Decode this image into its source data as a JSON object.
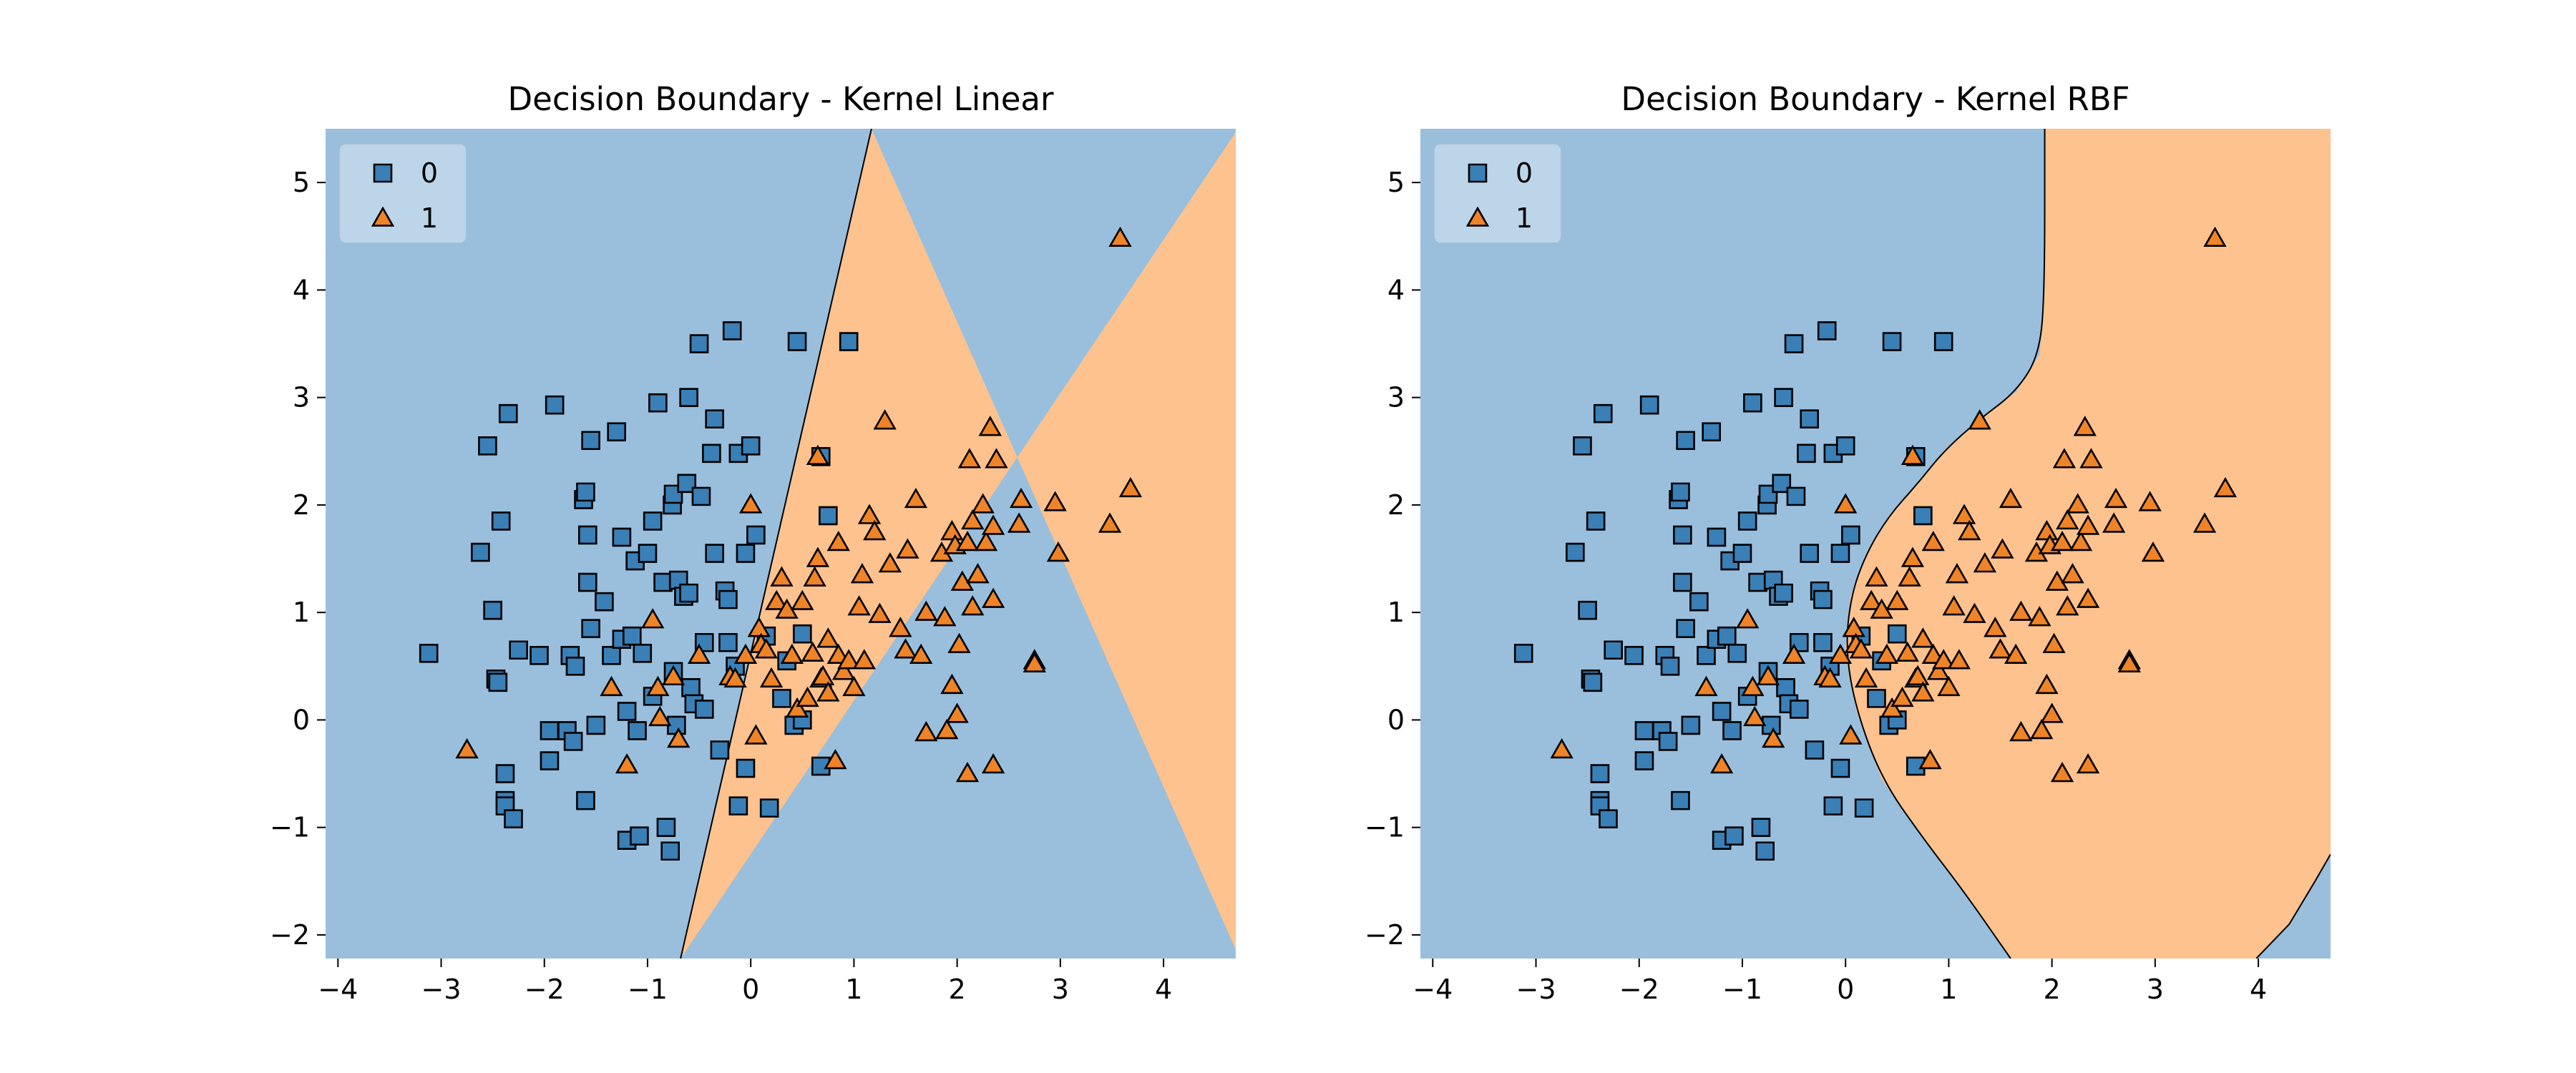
{
  "colors": {
    "class0_region": "#99bfdd",
    "class1_region": "#fec28f",
    "class0_marker": "#3a7fb5",
    "class1_marker": "#ee8327",
    "boundary": "#000000"
  },
  "chart_data": [
    {
      "type": "scatter",
      "title": "Decision Boundary - Kernel Linear",
      "xlim": [
        -4.12,
        4.7
      ],
      "ylim": [
        -2.22,
        5.5
      ],
      "x_ticks": [
        -4,
        -3,
        -2,
        -1,
        0,
        1,
        2,
        3,
        4
      ],
      "x_tick_labels": [
        "−4",
        "−3",
        "−2",
        "−1",
        "0",
        "1",
        "2",
        "3",
        "4"
      ],
      "y_ticks": [
        -2,
        -1,
        0,
        1,
        2,
        3,
        4,
        5
      ],
      "y_tick_labels": [
        "−2",
        "−1",
        "0",
        "1",
        "2",
        "3",
        "4",
        "5"
      ],
      "legend": {
        "position": "top-left",
        "entries": [
          {
            "label": "0",
            "marker": "square"
          },
          {
            "label": "1",
            "marker": "triangle"
          }
        ]
      },
      "boundary_kind": "linear",
      "boundary_points": [
        [
          -0.68,
          -2.22
        ],
        [
          1.17,
          5.5
        ]
      ],
      "regions": [
        {
          "class": "0",
          "side": "left"
        },
        {
          "class": "1",
          "side": "right"
        }
      ]
    },
    {
      "type": "scatter",
      "title": "Decision Boundary - Kernel RBF",
      "xlim": [
        -4.12,
        4.7
      ],
      "ylim": [
        -2.22,
        5.5
      ],
      "x_ticks": [
        -4,
        -3,
        -2,
        -1,
        0,
        1,
        2,
        3,
        4
      ],
      "x_tick_labels": [
        "−4",
        "−3",
        "−2",
        "−1",
        "0",
        "1",
        "2",
        "3",
        "4"
      ],
      "y_ticks": [
        -2,
        -1,
        0,
        1,
        2,
        3,
        4,
        5
      ],
      "y_tick_labels": [
        "−2",
        "−1",
        "0",
        "1",
        "2",
        "3",
        "4",
        "5"
      ],
      "legend": {
        "position": "top-left",
        "entries": [
          {
            "label": "0",
            "marker": "square"
          },
          {
            "label": "1",
            "marker": "triangle"
          }
        ]
      },
      "boundary_kind": "rbf",
      "boundary_points": [
        [
          1.93,
          5.5
        ],
        [
          1.93,
          4.0
        ],
        [
          1.88,
          3.4
        ],
        [
          1.65,
          3.05
        ],
        [
          1.3,
          2.8
        ],
        [
          0.95,
          2.5
        ],
        [
          0.7,
          2.2
        ],
        [
          0.42,
          1.9
        ],
        [
          0.2,
          1.55
        ],
        [
          0.05,
          1.15
        ],
        [
          0.0,
          0.65
        ],
        [
          0.1,
          0.1
        ],
        [
          0.35,
          -0.55
        ],
        [
          0.75,
          -1.1
        ],
        [
          1.15,
          -1.6
        ],
        [
          1.6,
          -2.22
        ]
      ],
      "corner_boundary_points": [
        [
          3.98,
          -2.22
        ],
        [
          4.3,
          -1.9
        ],
        [
          4.55,
          -1.5
        ],
        [
          4.7,
          -1.25
        ]
      ],
      "regions": [
        {
          "class": "0",
          "side": "left"
        },
        {
          "class": "1",
          "side": "right"
        },
        {
          "class": "0",
          "side": "bottom-right-corner"
        }
      ]
    }
  ],
  "points_class0": [
    [
      -3.12,
      0.62
    ],
    [
      -2.62,
      1.56
    ],
    [
      -2.55,
      2.55
    ],
    [
      -2.5,
      1.02
    ],
    [
      -2.47,
      0.38
    ],
    [
      -2.45,
      0.35
    ],
    [
      -2.42,
      1.85
    ],
    [
      -2.35,
      2.85
    ],
    [
      -2.38,
      -0.5
    ],
    [
      -2.38,
      -0.75
    ],
    [
      -2.38,
      -0.8
    ],
    [
      -2.3,
      -0.92
    ],
    [
      -2.25,
      0.65
    ],
    [
      -2.05,
      0.6
    ],
    [
      -1.9,
      2.93
    ],
    [
      -1.95,
      -0.1
    ],
    [
      -1.95,
      -0.38
    ],
    [
      -1.78,
      -0.1
    ],
    [
      -1.72,
      -0.2
    ],
    [
      -1.75,
      0.6
    ],
    [
      -1.7,
      0.5
    ],
    [
      -1.62,
      2.05
    ],
    [
      -1.6,
      2.12
    ],
    [
      -1.58,
      1.72
    ],
    [
      -1.58,
      1.28
    ],
    [
      -1.6,
      -0.75
    ],
    [
      -1.55,
      0.85
    ],
    [
      -1.55,
      2.6
    ],
    [
      -1.5,
      -0.05
    ],
    [
      -1.42,
      1.1
    ],
    [
      -1.35,
      0.6
    ],
    [
      -1.3,
      2.68
    ],
    [
      -1.25,
      0.75
    ],
    [
      -1.25,
      1.7
    ],
    [
      -1.2,
      0.08
    ],
    [
      -1.2,
      -1.12
    ],
    [
      -1.15,
      0.78
    ],
    [
      -1.12,
      1.48
    ],
    [
      -1.1,
      -0.1
    ],
    [
      -1.05,
      0.62
    ],
    [
      -1.08,
      -1.08
    ],
    [
      -1.0,
      1.55
    ],
    [
      -0.95,
      0.22
    ],
    [
      -0.95,
      1.85
    ],
    [
      -0.9,
      2.95
    ],
    [
      -0.85,
      1.28
    ],
    [
      -0.82,
      -1.0
    ],
    [
      -0.78,
      -1.22
    ],
    [
      -0.76,
      2.0
    ],
    [
      -0.75,
      2.1
    ],
    [
      -0.72,
      -0.05
    ],
    [
      -0.75,
      0.45
    ],
    [
      -0.7,
      1.3
    ],
    [
      -0.65,
      1.15
    ],
    [
      -0.62,
      2.2
    ],
    [
      -0.6,
      1.18
    ],
    [
      -0.58,
      0.3
    ],
    [
      -0.6,
      3.0
    ],
    [
      -0.55,
      0.15
    ],
    [
      -0.5,
      3.5
    ],
    [
      -0.48,
      2.08
    ],
    [
      -0.45,
      0.1
    ],
    [
      -0.45,
      0.72
    ],
    [
      -0.38,
      2.48
    ],
    [
      -0.35,
      1.55
    ],
    [
      -0.35,
      2.8
    ],
    [
      -0.3,
      -0.28
    ],
    [
      -0.25,
      1.2
    ],
    [
      -0.22,
      1.12
    ],
    [
      -0.22,
      0.72
    ],
    [
      -0.18,
      3.62
    ],
    [
      -0.15,
      0.5
    ],
    [
      -0.12,
      2.48
    ],
    [
      -0.12,
      -0.8
    ],
    [
      -0.05,
      1.55
    ],
    [
      -0.05,
      -0.45
    ],
    [
      0.0,
      2.55
    ],
    [
      0.05,
      1.72
    ],
    [
      0.15,
      0.78
    ],
    [
      0.18,
      -0.82
    ],
    [
      0.3,
      0.2
    ],
    [
      0.35,
      0.55
    ],
    [
      0.42,
      -0.05
    ],
    [
      0.45,
      3.52
    ],
    [
      0.5,
      0.0
    ],
    [
      0.5,
      0.8
    ],
    [
      0.68,
      -0.43
    ],
    [
      0.68,
      2.45
    ],
    [
      0.75,
      1.9
    ],
    [
      0.95,
      3.52
    ]
  ],
  "points_class1": [
    [
      -2.75,
      -0.28
    ],
    [
      -1.35,
      0.3
    ],
    [
      -1.2,
      -0.42
    ],
    [
      -0.95,
      0.93
    ],
    [
      -0.9,
      0.3
    ],
    [
      -0.88,
      0.02
    ],
    [
      -0.75,
      0.4
    ],
    [
      -0.7,
      -0.18
    ],
    [
      -0.5,
      0.6
    ],
    [
      -0.2,
      0.4
    ],
    [
      -0.15,
      0.38
    ],
    [
      -0.05,
      0.6
    ],
    [
      0.0,
      2.0
    ],
    [
      0.05,
      -0.15
    ],
    [
      0.08,
      0.85
    ],
    [
      0.1,
      0.7
    ],
    [
      0.15,
      0.65
    ],
    [
      0.2,
      0.38
    ],
    [
      0.25,
      1.1
    ],
    [
      0.3,
      1.32
    ],
    [
      0.35,
      1.02
    ],
    [
      0.4,
      0.6
    ],
    [
      0.45,
      0.1
    ],
    [
      0.5,
      1.1
    ],
    [
      0.55,
      0.2
    ],
    [
      0.6,
      0.62
    ],
    [
      0.62,
      1.32
    ],
    [
      0.65,
      1.5
    ],
    [
      0.65,
      2.45
    ],
    [
      0.68,
      0.38
    ],
    [
      0.7,
      0.4
    ],
    [
      0.75,
      0.25
    ],
    [
      0.75,
      0.75
    ],
    [
      0.82,
      -0.38
    ],
    [
      0.85,
      1.65
    ],
    [
      0.85,
      0.6
    ],
    [
      0.9,
      0.45
    ],
    [
      0.95,
      0.55
    ],
    [
      1.0,
      0.3
    ],
    [
      1.05,
      1.05
    ],
    [
      1.08,
      1.35
    ],
    [
      1.1,
      0.55
    ],
    [
      1.15,
      1.9
    ],
    [
      1.2,
      1.75
    ],
    [
      1.25,
      0.98
    ],
    [
      1.3,
      2.78
    ],
    [
      1.35,
      1.45
    ],
    [
      1.45,
      0.85
    ],
    [
      1.5,
      0.65
    ],
    [
      1.52,
      1.58
    ],
    [
      1.6,
      2.05
    ],
    [
      1.65,
      0.6
    ],
    [
      1.7,
      1.0
    ],
    [
      1.7,
      -0.12
    ],
    [
      1.85,
      1.55
    ],
    [
      1.88,
      0.95
    ],
    [
      1.9,
      -0.1
    ],
    [
      1.95,
      1.75
    ],
    [
      1.95,
      0.32
    ],
    [
      1.98,
      1.62
    ],
    [
      2.0,
      0.05
    ],
    [
      2.02,
      0.7
    ],
    [
      2.05,
      1.28
    ],
    [
      2.1,
      1.65
    ],
    [
      2.12,
      2.42
    ],
    [
      2.15,
      1.05
    ],
    [
      2.15,
      1.85
    ],
    [
      2.1,
      -0.5
    ],
    [
      2.2,
      1.35
    ],
    [
      2.25,
      2.0
    ],
    [
      2.28,
      1.65
    ],
    [
      2.32,
      2.72
    ],
    [
      2.35,
      1.12
    ],
    [
      2.35,
      1.8
    ],
    [
      2.38,
      2.42
    ],
    [
      2.35,
      -0.42
    ],
    [
      2.6,
      1.82
    ],
    [
      2.62,
      2.05
    ],
    [
      2.75,
      0.55
    ],
    [
      2.75,
      0.52
    ],
    [
      2.95,
      2.02
    ],
    [
      2.98,
      1.55
    ],
    [
      3.48,
      1.82
    ],
    [
      3.68,
      2.15
    ],
    [
      3.58,
      4.48
    ]
  ]
}
